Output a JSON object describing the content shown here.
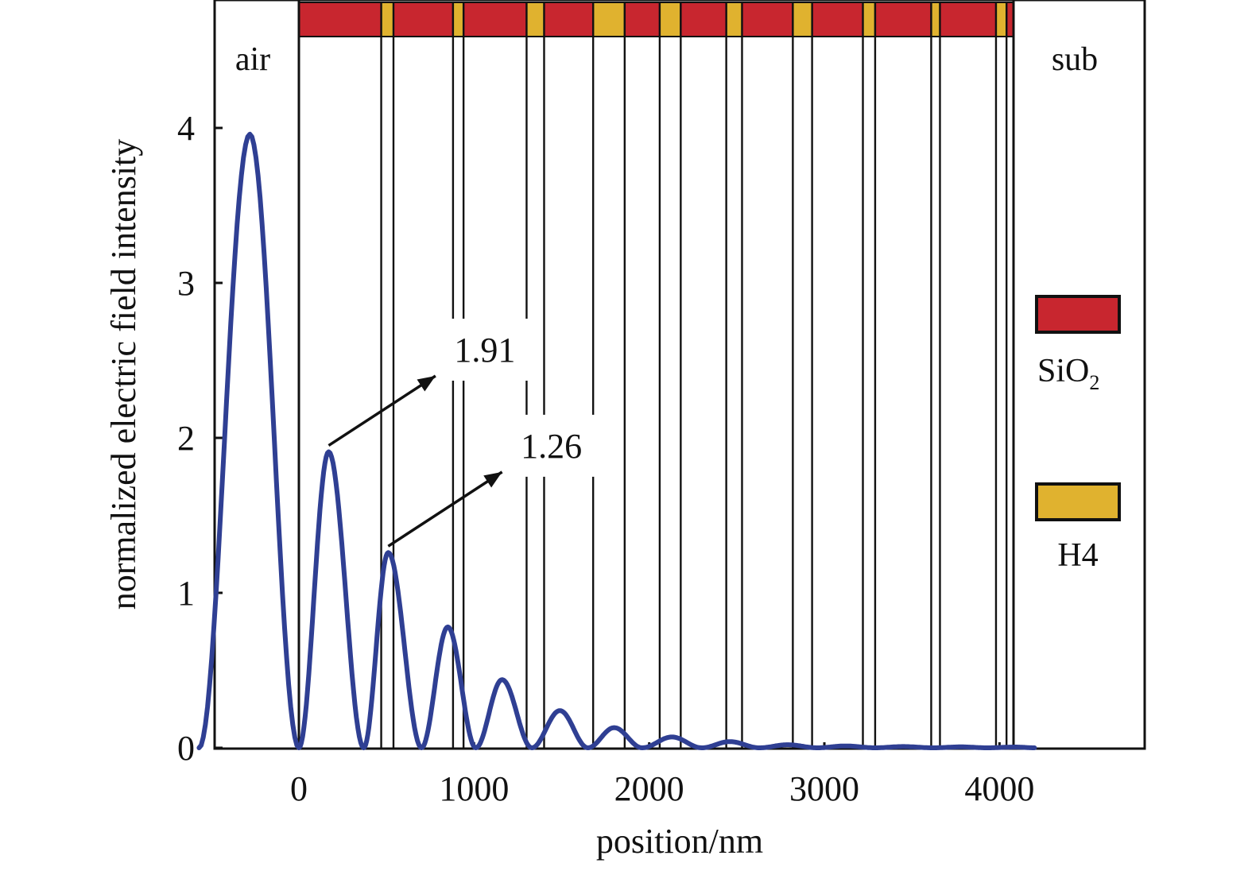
{
  "chart_data": {
    "type": "line",
    "xlabel": "position/nm",
    "ylabel": "normalized electric field intensity",
    "xlim": [
      -570,
      4700
    ],
    "ylim": [
      0,
      4.8
    ],
    "xticks": [
      0,
      1000,
      2000,
      3000,
      4000
    ],
    "yticks": [
      0,
      1,
      2,
      3,
      4
    ],
    "xtick_labels": [
      "0",
      "1000",
      "2000",
      "3000",
      "4000"
    ],
    "ytick_labels": [
      "0",
      "1",
      "2",
      "3",
      "4"
    ],
    "grid": false,
    "regions": {
      "left": "air",
      "right": "sub"
    },
    "layer_boundaries": [
      0,
      470,
      540,
      880,
      940,
      1300,
      1400,
      1680,
      1860,
      2060,
      2180,
      2440,
      2530,
      2820,
      2930,
      3220,
      3290,
      3610,
      3660,
      3980,
      4040,
      4080
    ],
    "layers": [
      {
        "material": "SiO2",
        "from": 0,
        "to": 470
      },
      {
        "material": "H4",
        "from": 470,
        "to": 540
      },
      {
        "material": "SiO2",
        "from": 540,
        "to": 880
      },
      {
        "material": "H4",
        "from": 880,
        "to": 940
      },
      {
        "material": "SiO2",
        "from": 940,
        "to": 1300
      },
      {
        "material": "H4",
        "from": 1300,
        "to": 1400
      },
      {
        "material": "SiO2",
        "from": 1400,
        "to": 1680
      },
      {
        "material": "H4",
        "from": 1680,
        "to": 1860
      },
      {
        "material": "SiO2",
        "from": 1860,
        "to": 2060
      },
      {
        "material": "H4",
        "from": 2060,
        "to": 2180
      },
      {
        "material": "SiO2",
        "from": 2180,
        "to": 2440
      },
      {
        "material": "H4",
        "from": 2440,
        "to": 2530
      },
      {
        "material": "SiO2",
        "from": 2530,
        "to": 2820
      },
      {
        "material": "H4",
        "from": 2820,
        "to": 2930
      },
      {
        "material": "SiO2",
        "from": 2930,
        "to": 3220
      },
      {
        "material": "H4",
        "from": 3220,
        "to": 3290
      },
      {
        "material": "SiO2",
        "from": 3290,
        "to": 3610
      },
      {
        "material": "H4",
        "from": 3610,
        "to": 3660
      },
      {
        "material": "SiO2",
        "from": 3660,
        "to": 3980
      },
      {
        "material": "H4",
        "from": 3980,
        "to": 4040
      },
      {
        "material": "SiO2",
        "from": 4040,
        "to": 4080
      }
    ],
    "series": [
      {
        "peaks": [
          {
            "x": -280,
            "y": 3.96
          },
          {
            "x": 170,
            "y": 1.91
          },
          {
            "x": 510,
            "y": 1.26
          },
          {
            "x": 850,
            "y": 0.78
          },
          {
            "x": 1160,
            "y": 0.44
          },
          {
            "x": 1490,
            "y": 0.24
          },
          {
            "x": 1800,
            "y": 0.13
          },
          {
            "x": 2130,
            "y": 0.07
          },
          {
            "x": 2460,
            "y": 0.04
          },
          {
            "x": 2790,
            "y": 0.02
          },
          {
            "x": 3120,
            "y": 0.012
          },
          {
            "x": 3450,
            "y": 0.008
          },
          {
            "x": 3780,
            "y": 0.006
          },
          {
            "x": 4090,
            "y": 0.005
          }
        ],
        "zeros": [
          -570,
          0,
          370,
          700,
          1010,
          1330,
          1650,
          1960,
          2300,
          2630,
          2960,
          3290,
          3620,
          3930,
          4200
        ],
        "color": "#2f3f93"
      }
    ],
    "annotations": [
      {
        "text": "1.91",
        "point": {
          "x": 170,
          "y": 1.91
        },
        "target": {
          "x": 780,
          "y": 2.4
        }
      },
      {
        "text": "1.26",
        "point": {
          "x": 510,
          "y": 1.26
        },
        "target": {
          "x": 1160,
          "y": 1.78
        }
      }
    ],
    "legend": {
      "position": "right",
      "items": [
        {
          "label": "SiO",
          "subscript": "2",
          "color": "#c8262f"
        },
        {
          "label": "H4",
          "subscript": "",
          "color": "#e0b22f"
        }
      ]
    },
    "colors": {
      "sio2": "#c8262f",
      "h4": "#e0b22f",
      "curve": "#2f3f93",
      "frame": "#111111"
    }
  }
}
